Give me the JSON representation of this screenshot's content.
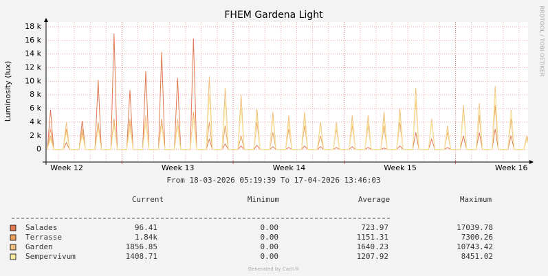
{
  "chart_data": {
    "type": "line",
    "title": "FHEM Gardena Light",
    "ylabel": "Luminosity (lux)",
    "period": "From 18-03-2026 05:19:39 To 17-04-2026 13:46:03",
    "watermark": "RRDTOOL / TOBI OETIKER",
    "footer": "Generated by Cacti®",
    "x": [
      0.08,
      0.28,
      0.48,
      1.08,
      1.28,
      1.48,
      2.08,
      2.28,
      2.48,
      3.08,
      3.28,
      3.48,
      4.08,
      4.28,
      4.48,
      5.08,
      5.28,
      5.48,
      6.08,
      6.28,
      6.48,
      7.08,
      7.28,
      7.48,
      8.08,
      8.28,
      8.48,
      9.08,
      9.28,
      9.48,
      10.08,
      10.28,
      10.48,
      11.08,
      11.28,
      11.48,
      12.08,
      12.28,
      12.48,
      13.08,
      13.28,
      13.48,
      14.08,
      14.28,
      14.48,
      15.08,
      15.28,
      15.48,
      16.08,
      16.28,
      16.48,
      17.08,
      17.28,
      17.48,
      18.08,
      18.28,
      18.48,
      19.08,
      19.28,
      19.48,
      20.08,
      20.28,
      20.48,
      21.08,
      21.28,
      21.48,
      22.08,
      22.28,
      22.48,
      23.08,
      23.28,
      23.48,
      24.08,
      24.28,
      24.48,
      25.08,
      25.28,
      25.48,
      26.08,
      26.28,
      26.48,
      27.08,
      27.28,
      27.48,
      28.08,
      28.28,
      28.48,
      29.08,
      29.28,
      29.48,
      30.08,
      30.28,
      30.48
    ],
    "series": [
      {
        "name": "Salades",
        "color": "#e07850",
        "values": [
          0,
          5800,
          0,
          0,
          1000,
          0,
          0,
          4200,
          0,
          0,
          10200,
          0,
          0,
          17000,
          0,
          0,
          8700,
          0,
          0,
          11500,
          0,
          0,
          14300,
          0,
          0,
          10500,
          0,
          0,
          16300,
          0,
          0,
          1500,
          0,
          0,
          800,
          0,
          0,
          500,
          0,
          0,
          600,
          0,
          0,
          400,
          0,
          0,
          300,
          0,
          0,
          500,
          0,
          0,
          400,
          0,
          0,
          300,
          0,
          0,
          400,
          0,
          0,
          300,
          0,
          0,
          200,
          0,
          0,
          500,
          0,
          0,
          2500,
          0,
          0,
          1500,
          0,
          0,
          300,
          0,
          0,
          2000,
          0,
          0,
          2500,
          0,
          0,
          3000,
          0,
          0,
          2000,
          0,
          0,
          1500,
          0
        ]
      },
      {
        "name": "Terrasse",
        "color": "#eaa060",
        "values": [
          0,
          3000,
          0,
          0,
          3000,
          0,
          0,
          2500,
          0,
          0,
          4000,
          0,
          0,
          4500,
          0,
          0,
          4000,
          0,
          0,
          4000,
          0,
          0,
          4500,
          0,
          0,
          3500,
          0,
          0,
          5500,
          0,
          0,
          4000,
          0,
          0,
          3500,
          0,
          0,
          2000,
          0,
          0,
          4000,
          0,
          0,
          2500,
          0,
          0,
          3000,
          0,
          0,
          3500,
          0,
          0,
          2000,
          0,
          0,
          3000,
          0,
          0,
          3500,
          0,
          0,
          3500,
          0,
          0,
          3500,
          0,
          0,
          4000,
          0,
          0,
          7300,
          0,
          0,
          4000,
          0,
          0,
          2500,
          0,
          0,
          6000,
          0,
          0,
          5000,
          0,
          0,
          6500,
          0,
          0,
          4500,
          0,
          0,
          2000,
          0
        ]
      },
      {
        "name": "Garden",
        "color": "#f0c080",
        "values": [
          0,
          2000,
          0,
          0,
          4000,
          0,
          0,
          3000,
          0,
          0,
          3500,
          0,
          0,
          4000,
          0,
          0,
          4500,
          0,
          0,
          5000,
          0,
          0,
          4000,
          0,
          0,
          4500,
          0,
          0,
          5000,
          0,
          0,
          10700,
          0,
          0,
          9000,
          0,
          0,
          8000,
          0,
          0,
          6000,
          0,
          0,
          5500,
          0,
          0,
          5000,
          0,
          0,
          5500,
          0,
          0,
          4000,
          0,
          0,
          4000,
          0,
          0,
          5000,
          0,
          0,
          5000,
          0,
          0,
          5500,
          0,
          0,
          6000,
          0,
          0,
          9000,
          0,
          0,
          4500,
          0,
          0,
          3500,
          0,
          0,
          6500,
          0,
          0,
          6800,
          0,
          0,
          9300,
          0,
          0,
          5800,
          0,
          0,
          2000,
          0
        ]
      },
      {
        "name": "Sempervivum",
        "color": "#f8e8a0",
        "values": [
          0,
          1500,
          0,
          0,
          2500,
          0,
          0,
          2000,
          0,
          0,
          3000,
          0,
          0,
          3500,
          0,
          0,
          3000,
          0,
          0,
          4000,
          0,
          0,
          3500,
          0,
          0,
          3500,
          0,
          0,
          4500,
          0,
          0,
          8000,
          0,
          0,
          7000,
          0,
          0,
          6000,
          0,
          0,
          5000,
          0,
          0,
          4500,
          0,
          0,
          4000,
          0,
          0,
          4500,
          0,
          0,
          3500,
          0,
          0,
          3500,
          0,
          0,
          4000,
          0,
          0,
          4000,
          0,
          0,
          4500,
          0,
          0,
          5000,
          0,
          0,
          8000,
          0,
          0,
          4000,
          0,
          0,
          3000,
          0,
          0,
          5500,
          0,
          0,
          6000,
          0,
          0,
          8400,
          0,
          0,
          5500,
          0,
          0,
          1500,
          0
        ]
      }
    ],
    "xlim": [
      0,
      30.35
    ],
    "xticks": [
      {
        "value": 1.3,
        "label": "Week 12"
      },
      {
        "value": 8.3,
        "label": "Week 13"
      },
      {
        "value": 15.3,
        "label": "Week 14"
      },
      {
        "value": 22.3,
        "label": "Week 15"
      },
      {
        "value": 29.3,
        "label": "Week 16"
      }
    ],
    "xmajor": [
      4.78,
      11.78,
      18.78,
      25.78
    ],
    "xminor": [
      0.78,
      1.78,
      2.78,
      3.78,
      5.78,
      6.78,
      7.78,
      8.78,
      9.78,
      10.78,
      12.78,
      13.78,
      14.78,
      15.78,
      16.78,
      17.78,
      19.78,
      20.78,
      21.78,
      22.78,
      23.78,
      24.78,
      26.78,
      27.78,
      28.78,
      29.78
    ],
    "ylim": [
      -1850,
      18700
    ],
    "yticks": [
      0,
      {
        "value": 2000,
        "label": "2 k"
      },
      {
        "value": 4000,
        "label": "4 k"
      },
      {
        "value": 6000,
        "label": "6 k"
      },
      {
        "value": 8000,
        "label": "8 k"
      },
      {
        "value": 10000,
        "label": "10 k"
      },
      {
        "value": 12000,
        "label": "12 k"
      },
      {
        "value": 14000,
        "label": "14 k"
      },
      {
        "value": 16000,
        "label": "16 k"
      },
      {
        "value": 18000,
        "label": "18 k"
      }
    ],
    "grid": true,
    "legend": {
      "headers": [
        "Current",
        "Minimum",
        "Average",
        "Maximum"
      ],
      "rows": [
        [
          "96.41",
          "0.00",
          "723.97",
          "17039.78"
        ],
        [
          "1.84k",
          "0.00",
          "1151.31",
          "7300.26"
        ],
        [
          "1856.85",
          "0.00",
          "1640.23",
          "10743.42"
        ],
        [
          "1408.71",
          "0.00",
          "1207.92",
          "8451.02"
        ]
      ]
    }
  }
}
